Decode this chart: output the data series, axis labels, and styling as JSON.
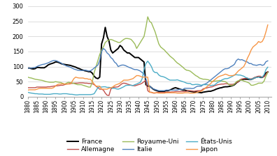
{
  "title": "",
  "xlim": [
    1880,
    2012
  ],
  "ylim": [
    0,
    300
  ],
  "yticks": [
    0,
    50,
    100,
    150,
    200,
    250,
    300
  ],
  "xticks": [
    1880,
    1885,
    1890,
    1895,
    1900,
    1905,
    1910,
    1915,
    1920,
    1925,
    1930,
    1935,
    1940,
    1945,
    1950,
    1955,
    1960,
    1965,
    1970,
    1975,
    1980,
    1985,
    1990,
    1995,
    2000,
    2005,
    2010
  ],
  "background_color": "#ffffff",
  "grid_color": "#d0d0d0",
  "series": {
    "France": {
      "color": "#000000",
      "lw": 1.4,
      "data": {
        "1880": 95,
        "1881": 95,
        "1882": 93,
        "1883": 92,
        "1884": 93,
        "1885": 97,
        "1886": 97,
        "1887": 96,
        "1888": 96,
        "1889": 96,
        "1890": 100,
        "1891": 105,
        "1892": 108,
        "1893": 110,
        "1894": 112,
        "1895": 115,
        "1896": 115,
        "1897": 113,
        "1898": 110,
        "1899": 108,
        "1900": 107,
        "1901": 106,
        "1902": 105,
        "1903": 104,
        "1904": 102,
        "1905": 100,
        "1906": 98,
        "1907": 95,
        "1908": 93,
        "1909": 90,
        "1910": 88,
        "1911": 86,
        "1912": 85,
        "1913": 83,
        "1914": 83,
        "1915": 78,
        "1916": 68,
        "1917": 62,
        "1918": 60,
        "1919": 65,
        "1920": 175,
        "1921": 195,
        "1922": 230,
        "1923": 200,
        "1924": 185,
        "1925": 155,
        "1926": 145,
        "1927": 150,
        "1928": 155,
        "1929": 160,
        "1930": 170,
        "1931": 165,
        "1932": 155,
        "1933": 150,
        "1934": 145,
        "1935": 145,
        "1936": 140,
        "1937": 135,
        "1938": 130,
        "1939": 130,
        "1940": 130,
        "1941": 125,
        "1942": 120,
        "1943": 115,
        "1944": 40,
        "1945": 35,
        "1946": 35,
        "1947": 30,
        "1948": 25,
        "1949": 22,
        "1950": 20,
        "1951": 18,
        "1952": 18,
        "1953": 18,
        "1954": 18,
        "1955": 20,
        "1956": 20,
        "1957": 22,
        "1958": 25,
        "1959": 28,
        "1960": 30,
        "1961": 28,
        "1962": 26,
        "1963": 24,
        "1964": 22,
        "1965": 22,
        "1966": 20,
        "1967": 19,
        "1968": 18,
        "1969": 17,
        "1970": 16,
        "1971": 16,
        "1972": 15,
        "1973": 14,
        "1974": 13,
        "1975": 15,
        "1976": 16,
        "1977": 17,
        "1978": 18,
        "1979": 18,
        "1980": 20,
        "1981": 22,
        "1982": 25,
        "1983": 27,
        "1984": 29,
        "1985": 30,
        "1986": 32,
        "1987": 33,
        "1988": 33,
        "1989": 34,
        "1990": 35,
        "1991": 37,
        "1992": 40,
        "1993": 46,
        "1994": 50,
        "1995": 55,
        "1996": 57,
        "1997": 58,
        "1998": 58,
        "1999": 58,
        "2000": 57,
        "2001": 57,
        "2002": 60,
        "2003": 63,
        "2004": 65,
        "2005": 67,
        "2006": 64,
        "2007": 64,
        "2008": 68,
        "2009": 79,
        "2010": 82
      }
    },
    "Allemagne": {
      "color": "#c0504d",
      "lw": 1.0,
      "data": {
        "1880": 30,
        "1881": 30,
        "1882": 30,
        "1883": 30,
        "1884": 30,
        "1885": 32,
        "1886": 32,
        "1887": 32,
        "1888": 32,
        "1889": 32,
        "1890": 32,
        "1891": 33,
        "1892": 33,
        "1893": 34,
        "1894": 35,
        "1895": 36,
        "1896": 36,
        "1897": 37,
        "1898": 38,
        "1899": 38,
        "1900": 40,
        "1901": 42,
        "1902": 43,
        "1903": 44,
        "1904": 44,
        "1905": 45,
        "1906": 45,
        "1907": 45,
        "1908": 46,
        "1909": 46,
        "1910": 46,
        "1911": 45,
        "1912": 45,
        "1913": 44,
        "1914": 44,
        "1915": 43,
        "1916": 40,
        "1917": 35,
        "1918": 30,
        "1919": 25,
        "1920": 25,
        "1921": 22,
        "1922": 12,
        "1923": 5,
        "1924": 4,
        "1925": 25,
        "1926": 30,
        "1927": 32,
        "1928": 32,
        "1929": 33,
        "1930": 38,
        "1931": 43,
        "1932": 45,
        "1933": 44,
        "1934": 42,
        "1935": 40,
        "1936": 38,
        "1937": 37,
        "1938": 36,
        "1939": 38,
        "1940": 40,
        "1941": 42,
        "1942": 45,
        "1943": 50,
        "1944": 55,
        "1945": 20,
        "1946": 15,
        "1947": 15,
        "1948": 12,
        "1949": 12,
        "1950": 14,
        "1951": 14,
        "1952": 14,
        "1953": 14,
        "1954": 14,
        "1955": 15,
        "1956": 15,
        "1957": 15,
        "1958": 16,
        "1959": 16,
        "1960": 17,
        "1961": 17,
        "1962": 17,
        "1963": 17,
        "1964": 17,
        "1965": 17,
        "1966": 18,
        "1967": 20,
        "1968": 20,
        "1969": 19,
        "1970": 18,
        "1971": 19,
        "1972": 20,
        "1973": 20,
        "1974": 21,
        "1975": 26,
        "1976": 28,
        "1977": 29,
        "1978": 31,
        "1979": 32,
        "1980": 33,
        "1981": 36,
        "1982": 38,
        "1983": 40,
        "1984": 41,
        "1985": 42,
        "1986": 42,
        "1987": 43,
        "1988": 43,
        "1989": 41,
        "1990": 41,
        "1991": 41,
        "1992": 43,
        "1993": 47,
        "1994": 49,
        "1995": 56,
        "1996": 59,
        "1997": 60,
        "1998": 61,
        "1999": 61,
        "2000": 60,
        "2001": 59,
        "2002": 61,
        "2003": 64,
        "2004": 66,
        "2005": 68,
        "2006": 68,
        "2007": 65,
        "2008": 66,
        "2009": 74,
        "2010": 83
      }
    },
    "Royaume-Uni": {
      "color": "#9bbb59",
      "lw": 1.0,
      "data": {
        "1880": 65,
        "1881": 63,
        "1882": 62,
        "1883": 60,
        "1884": 58,
        "1885": 57,
        "1886": 56,
        "1887": 55,
        "1888": 54,
        "1889": 52,
        "1890": 50,
        "1891": 49,
        "1892": 48,
        "1893": 48,
        "1894": 48,
        "1895": 50,
        "1896": 49,
        "1897": 48,
        "1898": 47,
        "1899": 44,
        "1900": 42,
        "1901": 45,
        "1902": 48,
        "1903": 47,
        "1904": 46,
        "1905": 44,
        "1906": 42,
        "1907": 40,
        "1908": 40,
        "1909": 40,
        "1910": 38,
        "1911": 36,
        "1912": 34,
        "1913": 32,
        "1914": 32,
        "1915": 50,
        "1916": 80,
        "1917": 100,
        "1918": 120,
        "1919": 140,
        "1920": 155,
        "1921": 165,
        "1922": 180,
        "1923": 185,
        "1924": 188,
        "1925": 190,
        "1926": 188,
        "1927": 185,
        "1928": 183,
        "1929": 180,
        "1930": 180,
        "1931": 185,
        "1932": 190,
        "1933": 193,
        "1934": 193,
        "1935": 192,
        "1936": 190,
        "1937": 183,
        "1938": 175,
        "1939": 160,
        "1940": 170,
        "1941": 180,
        "1942": 190,
        "1943": 200,
        "1944": 230,
        "1945": 265,
        "1946": 250,
        "1947": 245,
        "1948": 230,
        "1949": 215,
        "1950": 195,
        "1951": 175,
        "1952": 165,
        "1953": 160,
        "1954": 155,
        "1955": 148,
        "1956": 142,
        "1957": 135,
        "1958": 130,
        "1959": 125,
        "1960": 118,
        "1961": 112,
        "1962": 108,
        "1963": 103,
        "1964": 98,
        "1965": 92,
        "1966": 88,
        "1967": 87,
        "1968": 85,
        "1969": 80,
        "1970": 75,
        "1971": 70,
        "1972": 67,
        "1973": 62,
        "1974": 60,
        "1975": 58,
        "1976": 58,
        "1977": 57,
        "1978": 56,
        "1979": 52,
        "1980": 50,
        "1981": 52,
        "1982": 52,
        "1983": 53,
        "1984": 54,
        "1985": 52,
        "1986": 51,
        "1987": 50,
        "1988": 46,
        "1989": 40,
        "1990": 37,
        "1991": 38,
        "1992": 42,
        "1993": 50,
        "1994": 53,
        "1995": 55,
        "1996": 55,
        "1997": 52,
        "1998": 50,
        "1999": 48,
        "2000": 45,
        "2001": 38,
        "2002": 38,
        "2003": 40,
        "2004": 42,
        "2005": 45,
        "2006": 45,
        "2007": 45,
        "2008": 52,
        "2009": 68,
        "2010": 80
      }
    },
    "Italie": {
      "color": "#4f81bd",
      "lw": 1.0,
      "data": {
        "1880": 95,
        "1881": 95,
        "1882": 95,
        "1883": 96,
        "1884": 97,
        "1885": 100,
        "1886": 103,
        "1887": 105,
        "1888": 107,
        "1889": 108,
        "1890": 110,
        "1891": 112,
        "1892": 115,
        "1893": 118,
        "1894": 120,
        "1895": 120,
        "1896": 118,
        "1897": 115,
        "1898": 112,
        "1899": 108,
        "1900": 105,
        "1901": 102,
        "1902": 100,
        "1903": 98,
        "1904": 95,
        "1905": 92,
        "1906": 90,
        "1907": 88,
        "1908": 87,
        "1909": 87,
        "1910": 87,
        "1911": 88,
        "1912": 87,
        "1913": 85,
        "1914": 86,
        "1915": 90,
        "1916": 95,
        "1917": 100,
        "1918": 105,
        "1919": 120,
        "1920": 150,
        "1921": 160,
        "1922": 155,
        "1923": 145,
        "1924": 140,
        "1925": 130,
        "1926": 125,
        "1927": 115,
        "1928": 110,
        "1929": 100,
        "1930": 103,
        "1931": 105,
        "1932": 105,
        "1933": 103,
        "1934": 100,
        "1935": 97,
        "1936": 95,
        "1937": 92,
        "1938": 90,
        "1939": 90,
        "1940": 88,
        "1941": 85,
        "1942": 80,
        "1943": 75,
        "1944": 60,
        "1945": 40,
        "1946": 35,
        "1947": 30,
        "1948": 26,
        "1949": 24,
        "1950": 22,
        "1951": 20,
        "1952": 20,
        "1953": 20,
        "1954": 20,
        "1955": 22,
        "1956": 22,
        "1957": 22,
        "1958": 22,
        "1959": 22,
        "1960": 22,
        "1961": 22,
        "1962": 24,
        "1963": 24,
        "1964": 24,
        "1965": 28,
        "1966": 28,
        "1967": 28,
        "1968": 28,
        "1969": 27,
        "1970": 28,
        "1971": 32,
        "1972": 35,
        "1973": 35,
        "1974": 35,
        "1975": 40,
        "1976": 42,
        "1977": 45,
        "1978": 50,
        "1979": 55,
        "1980": 60,
        "1981": 65,
        "1982": 70,
        "1983": 75,
        "1984": 80,
        "1985": 85,
        "1986": 90,
        "1987": 93,
        "1988": 93,
        "1989": 95,
        "1990": 100,
        "1991": 103,
        "1992": 108,
        "1993": 120,
        "1994": 125,
        "1995": 122,
        "1996": 123,
        "1997": 120,
        "1998": 117,
        "1999": 115,
        "2000": 110,
        "2001": 110,
        "2002": 106,
        "2003": 105,
        "2004": 104,
        "2005": 106,
        "2006": 107,
        "2007": 104,
        "2008": 106,
        "2009": 116,
        "2010": 119
      }
    },
    "États-Unis": {
      "color": "#4bacc6",
      "lw": 1.0,
      "data": {
        "1880": 15,
        "1881": 13,
        "1882": 12,
        "1883": 11,
        "1884": 10,
        "1885": 10,
        "1886": 9,
        "1887": 9,
        "1888": 9,
        "1889": 8,
        "1890": 8,
        "1891": 8,
        "1892": 8,
        "1893": 9,
        "1894": 10,
        "1895": 10,
        "1896": 10,
        "1897": 9,
        "1898": 9,
        "1899": 10,
        "1900": 10,
        "1901": 10,
        "1902": 9,
        "1903": 8,
        "1904": 8,
        "1905": 7,
        "1906": 6,
        "1907": 6,
        "1908": 7,
        "1909": 7,
        "1910": 7,
        "1911": 7,
        "1912": 7,
        "1913": 7,
        "1914": 7,
        "1915": 8,
        "1916": 10,
        "1917": 20,
        "1918": 30,
        "1919": 33,
        "1920": 32,
        "1921": 33,
        "1922": 33,
        "1923": 31,
        "1924": 31,
        "1925": 30,
        "1926": 28,
        "1927": 28,
        "1928": 26,
        "1929": 25,
        "1930": 27,
        "1931": 30,
        "1932": 33,
        "1933": 37,
        "1934": 38,
        "1935": 38,
        "1936": 38,
        "1937": 37,
        "1938": 40,
        "1939": 42,
        "1940": 45,
        "1941": 48,
        "1942": 60,
        "1943": 90,
        "1944": 110,
        "1945": 118,
        "1946": 110,
        "1947": 100,
        "1948": 85,
        "1949": 80,
        "1950": 80,
        "1951": 72,
        "1952": 68,
        "1953": 67,
        "1954": 65,
        "1955": 62,
        "1956": 58,
        "1957": 55,
        "1958": 55,
        "1959": 55,
        "1960": 55,
        "1961": 56,
        "1962": 54,
        "1963": 52,
        "1964": 50,
        "1965": 48,
        "1966": 45,
        "1967": 44,
        "1968": 44,
        "1969": 40,
        "1970": 40,
        "1971": 41,
        "1972": 41,
        "1973": 40,
        "1974": 38,
        "1975": 40,
        "1976": 40,
        "1977": 40,
        "1978": 39,
        "1979": 37,
        "1980": 38,
        "1981": 38,
        "1982": 43,
        "1983": 48,
        "1984": 50,
        "1985": 55,
        "1986": 58,
        "1987": 60,
        "1988": 60,
        "1989": 62,
        "1990": 65,
        "1991": 68,
        "1992": 72,
        "1993": 73,
        "1994": 72,
        "1995": 72,
        "1996": 70,
        "1997": 68,
        "1998": 64,
        "1999": 62,
        "2000": 58,
        "2001": 57,
        "2002": 60,
        "2003": 63,
        "2004": 64,
        "2005": 65,
        "2006": 65,
        "2007": 65,
        "2008": 73,
        "2009": 90,
        "2010": 98
      }
    },
    "Japon": {
      "color": "#f79646",
      "lw": 1.0,
      "data": {
        "1880": 22,
        "1881": 23,
        "1882": 23,
        "1883": 23,
        "1884": 23,
        "1885": 25,
        "1886": 27,
        "1887": 28,
        "1888": 28,
        "1889": 28,
        "1890": 28,
        "1891": 28,
        "1892": 28,
        "1893": 28,
        "1894": 30,
        "1895": 35,
        "1896": 40,
        "1897": 42,
        "1898": 42,
        "1899": 43,
        "1900": 42,
        "1901": 42,
        "1902": 42,
        "1903": 42,
        "1904": 50,
        "1905": 60,
        "1906": 65,
        "1907": 63,
        "1908": 62,
        "1909": 62,
        "1910": 62,
        "1911": 60,
        "1912": 60,
        "1913": 58,
        "1914": 58,
        "1915": 50,
        "1916": 42,
        "1917": 35,
        "1918": 35,
        "1919": 35,
        "1920": 25,
        "1921": 25,
        "1922": 25,
        "1923": 25,
        "1924": 28,
        "1925": 30,
        "1926": 32,
        "1927": 37,
        "1928": 40,
        "1929": 42,
        "1930": 45,
        "1931": 50,
        "1932": 55,
        "1933": 55,
        "1934": 55,
        "1935": 56,
        "1936": 58,
        "1937": 60,
        "1938": 65,
        "1939": 70,
        "1940": 70,
        "1941": 68,
        "1942": 65,
        "1943": 65,
        "1944": 65,
        "1945": 65,
        "1946": 15,
        "1947": 14,
        "1948": 13,
        "1949": 13,
        "1950": 13,
        "1951": 12,
        "1952": 12,
        "1953": 12,
        "1954": 12,
        "1955": 13,
        "1956": 13,
        "1957": 13,
        "1958": 13,
        "1959": 13,
        "1960": 13,
        "1961": 12,
        "1962": 12,
        "1963": 12,
        "1964": 12,
        "1965": 13,
        "1966": 13,
        "1967": 13,
        "1968": 12,
        "1969": 12,
        "1970": 12,
        "1971": 13,
        "1972": 15,
        "1973": 17,
        "1974": 18,
        "1975": 22,
        "1976": 28,
        "1977": 33,
        "1978": 38,
        "1979": 43,
        "1980": 50,
        "1981": 55,
        "1982": 60,
        "1983": 65,
        "1984": 68,
        "1985": 70,
        "1986": 72,
        "1987": 75,
        "1988": 73,
        "1989": 70,
        "1990": 70,
        "1991": 70,
        "1992": 72,
        "1993": 78,
        "1994": 85,
        "1995": 90,
        "1996": 95,
        "1997": 100,
        "1998": 112,
        "1999": 128,
        "2000": 140,
        "2001": 155,
        "2002": 165,
        "2003": 170,
        "2004": 175,
        "2005": 183,
        "2006": 180,
        "2007": 183,
        "2008": 195,
        "2009": 215,
        "2010": 238
      }
    }
  },
  "legend_order": [
    "France",
    "Allemagne",
    "Royaume-Uni",
    "Italie",
    "États-Unis",
    "Japon"
  ],
  "legend_labels": [
    "France",
    "Allemagne",
    "Royaume-Uni",
    "Italie",
    "États-Unis",
    "Japon"
  ]
}
